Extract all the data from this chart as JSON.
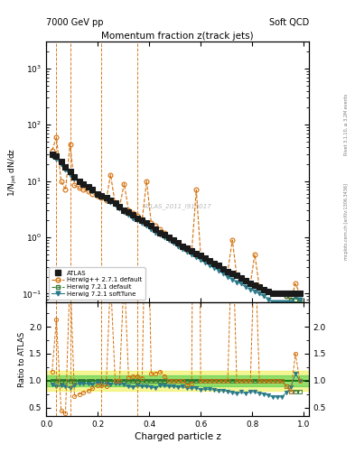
{
  "title": "Momentum fraction z(track jets)",
  "top_left_label": "7000 GeV pp",
  "top_right_label": "Soft QCD",
  "right_label_top": "Rivet 3.1.10, ≥ 3.2M events",
  "right_label_bot": "mcplots.cern.ch [arXiv:1306.3436]",
  "xlabel": "Charged particle z",
  "ylabel_main": "1/N$_{\\rm jet}$ dN/dz",
  "ylabel_ratio": "Ratio to ATLAS",
  "watermark": "ATLAS_2011_I919017",
  "xlim": [
    0.0,
    1.02
  ],
  "ylim_main": [
    0.07,
    3000
  ],
  "ylim_ratio": [
    0.35,
    2.45
  ],
  "atlas_x": [
    0.023,
    0.04,
    0.058,
    0.075,
    0.093,
    0.11,
    0.128,
    0.145,
    0.163,
    0.18,
    0.198,
    0.215,
    0.233,
    0.25,
    0.268,
    0.285,
    0.303,
    0.32,
    0.338,
    0.355,
    0.373,
    0.39,
    0.408,
    0.425,
    0.443,
    0.46,
    0.478,
    0.495,
    0.513,
    0.53,
    0.548,
    0.565,
    0.583,
    0.6,
    0.618,
    0.635,
    0.653,
    0.67,
    0.688,
    0.705,
    0.723,
    0.74,
    0.758,
    0.775,
    0.793,
    0.81,
    0.828,
    0.845,
    0.863,
    0.88,
    0.898,
    0.915,
    0.933,
    0.95,
    0.968,
    0.985
  ],
  "atlas_y": [
    30,
    28,
    22,
    18,
    15,
    12,
    10,
    9,
    8,
    7,
    6,
    5.5,
    5,
    4.5,
    4,
    3.5,
    3,
    2.8,
    2.5,
    2.2,
    2.0,
    1.8,
    1.6,
    1.4,
    1.2,
    1.1,
    1.0,
    0.9,
    0.8,
    0.7,
    0.65,
    0.58,
    0.52,
    0.48,
    0.43,
    0.38,
    0.35,
    0.32,
    0.28,
    0.25,
    0.23,
    0.21,
    0.19,
    0.17,
    0.15,
    0.14,
    0.13,
    0.12,
    0.11,
    0.1,
    0.1,
    0.1,
    0.1,
    0.1,
    0.1,
    0.1
  ],
  "atlas_yerr": [
    2,
    2,
    1.5,
    1.2,
    1.0,
    0.8,
    0.6,
    0.5,
    0.4,
    0.35,
    0.3,
    0.28,
    0.25,
    0.22,
    0.2,
    0.18,
    0.15,
    0.14,
    0.12,
    0.11,
    0.1,
    0.09,
    0.08,
    0.07,
    0.06,
    0.06,
    0.05,
    0.05,
    0.04,
    0.04,
    0.033,
    0.029,
    0.026,
    0.024,
    0.022,
    0.019,
    0.018,
    0.016,
    0.014,
    0.013,
    0.012,
    0.011,
    0.01,
    0.009,
    0.008,
    0.007,
    0.007,
    0.006,
    0.006,
    0.005,
    0.005,
    0.005,
    0.005,
    0.005,
    0.005,
    0.005
  ],
  "hpp_x": [
    0.023,
    0.04,
    0.058,
    0.075,
    0.093,
    0.11,
    0.128,
    0.145,
    0.163,
    0.18,
    0.198,
    0.215,
    0.233,
    0.25,
    0.268,
    0.285,
    0.303,
    0.32,
    0.338,
    0.355,
    0.373,
    0.39,
    0.408,
    0.425,
    0.443,
    0.46,
    0.478,
    0.495,
    0.513,
    0.53,
    0.548,
    0.565,
    0.583,
    0.6,
    0.618,
    0.635,
    0.653,
    0.67,
    0.688,
    0.705,
    0.723,
    0.74,
    0.758,
    0.775,
    0.793,
    0.81,
    0.828,
    0.845,
    0.863,
    0.88,
    0.898,
    0.915,
    0.933,
    0.95,
    0.968,
    0.985
  ],
  "hpp_y": [
    35,
    60,
    10,
    7,
    45,
    8.5,
    7.5,
    7.0,
    6.5,
    6.0,
    5.5,
    5.0,
    4.5,
    13,
    4.0,
    3.5,
    9,
    3.0,
    2.7,
    2.4,
    2.1,
    10,
    1.8,
    1.6,
    1.4,
    1.2,
    1.0,
    0.9,
    0.8,
    0.7,
    0.6,
    0.55,
    7.0,
    0.48,
    0.43,
    0.38,
    0.35,
    0.32,
    0.28,
    0.25,
    0.9,
    0.21,
    0.19,
    0.17,
    0.15,
    0.5,
    0.13,
    0.12,
    0.11,
    0.1,
    0.1,
    0.1,
    0.09,
    0.08,
    0.15,
    0.1
  ],
  "h721_x": [
    0.023,
    0.04,
    0.058,
    0.075,
    0.093,
    0.11,
    0.128,
    0.145,
    0.163,
    0.18,
    0.198,
    0.215,
    0.233,
    0.25,
    0.268,
    0.285,
    0.303,
    0.32,
    0.338,
    0.355,
    0.373,
    0.39,
    0.408,
    0.425,
    0.443,
    0.46,
    0.478,
    0.495,
    0.513,
    0.53,
    0.548,
    0.565,
    0.583,
    0.6,
    0.618,
    0.635,
    0.653,
    0.67,
    0.688,
    0.705,
    0.723,
    0.74,
    0.758,
    0.775,
    0.793,
    0.81,
    0.828,
    0.845,
    0.863,
    0.88,
    0.898,
    0.915,
    0.933,
    0.95,
    0.968,
    0.985
  ],
  "h721_y": [
    30,
    28,
    22,
    18,
    15,
    12,
    10,
    9,
    8,
    7,
    6,
    5.5,
    5,
    4.5,
    4,
    3.5,
    3,
    2.8,
    2.5,
    2.2,
    2.0,
    1.8,
    1.6,
    1.4,
    1.2,
    1.1,
    1.0,
    0.9,
    0.8,
    0.7,
    0.65,
    0.58,
    0.52,
    0.48,
    0.43,
    0.38,
    0.35,
    0.32,
    0.28,
    0.25,
    0.23,
    0.21,
    0.19,
    0.17,
    0.15,
    0.14,
    0.13,
    0.12,
    0.11,
    0.1,
    0.1,
    0.1,
    0.09,
    0.08,
    0.08,
    0.08
  ],
  "h721s_x": [
    0.023,
    0.04,
    0.058,
    0.075,
    0.093,
    0.11,
    0.128,
    0.145,
    0.163,
    0.18,
    0.198,
    0.215,
    0.233,
    0.25,
    0.268,
    0.285,
    0.303,
    0.32,
    0.338,
    0.355,
    0.373,
    0.39,
    0.408,
    0.425,
    0.443,
    0.46,
    0.478,
    0.495,
    0.513,
    0.53,
    0.548,
    0.565,
    0.583,
    0.6,
    0.618,
    0.635,
    0.653,
    0.67,
    0.688,
    0.705,
    0.723,
    0.74,
    0.758,
    0.775,
    0.793,
    0.81,
    0.828,
    0.845,
    0.863,
    0.88,
    0.898,
    0.915,
    0.933,
    0.95,
    0.968,
    0.985
  ],
  "h721s_y": [
    28,
    25,
    20,
    16,
    13,
    11,
    9.5,
    8.5,
    7.5,
    6.5,
    5.8,
    5.2,
    4.7,
    4.2,
    3.8,
    3.3,
    2.8,
    2.5,
    2.2,
    2.0,
    1.8,
    1.6,
    1.4,
    1.2,
    1.1,
    1.0,
    0.9,
    0.8,
    0.7,
    0.62,
    0.56,
    0.5,
    0.45,
    0.4,
    0.36,
    0.32,
    0.29,
    0.26,
    0.23,
    0.2,
    0.18,
    0.16,
    0.15,
    0.13,
    0.12,
    0.11,
    0.1,
    0.09,
    0.08,
    0.07,
    0.07,
    0.07,
    0.07,
    0.07,
    0.09,
    0.08
  ],
  "atlas_c": "#1a1a1a",
  "hpp_c": "#d4700a",
  "h721_c": "#3a7a3a",
  "h721s_c": "#2a7a8a",
  "vlines": [
    0.04,
    0.093,
    0.215,
    0.355
  ],
  "r_hpp": [
    1.17,
    2.14,
    0.45,
    0.39,
    3.0,
    0.71,
    0.75,
    0.78,
    0.81,
    0.86,
    0.92,
    0.91,
    0.9,
    2.89,
    1.0,
    1.0,
    3.0,
    1.07,
    1.08,
    1.09,
    1.05,
    5.56,
    1.13,
    1.14,
    1.17,
    1.09,
    1.0,
    1.0,
    1.0,
    1.0,
    0.92,
    0.95,
    13.5,
    1.0,
    1.0,
    1.0,
    1.0,
    1.0,
    1.0,
    1.0,
    3.91,
    1.0,
    1.0,
    1.0,
    1.0,
    3.57,
    1.0,
    1.0,
    1.0,
    1.0,
    1.0,
    1.0,
    0.9,
    0.8,
    1.5,
    1.0
  ],
  "r_h721": [
    1.0,
    1.0,
    1.0,
    1.0,
    1.0,
    1.0,
    1.0,
    1.0,
    1.0,
    1.0,
    1.0,
    1.0,
    1.0,
    1.0,
    1.0,
    1.0,
    1.0,
    1.0,
    1.0,
    1.0,
    1.0,
    1.0,
    1.0,
    1.0,
    1.0,
    1.0,
    1.0,
    1.0,
    1.0,
    1.0,
    1.0,
    1.0,
    1.0,
    1.0,
    1.0,
    1.0,
    1.0,
    1.0,
    1.0,
    1.0,
    1.0,
    1.0,
    1.0,
    1.0,
    1.0,
    1.0,
    1.0,
    1.0,
    1.0,
    1.0,
    1.0,
    1.0,
    0.9,
    0.8,
    0.8,
    0.8
  ],
  "r_h721s": [
    0.93,
    0.89,
    0.91,
    0.89,
    0.87,
    0.92,
    0.95,
    0.94,
    0.94,
    0.93,
    0.97,
    0.95,
    0.94,
    0.93,
    0.95,
    0.94,
    0.93,
    0.89,
    0.88,
    0.91,
    0.9,
    0.89,
    0.88,
    0.86,
    0.92,
    0.91,
    0.9,
    0.89,
    0.88,
    0.89,
    0.86,
    0.86,
    0.87,
    0.83,
    0.84,
    0.84,
    0.83,
    0.81,
    0.82,
    0.8,
    0.78,
    0.76,
    0.79,
    0.76,
    0.8,
    0.79,
    0.77,
    0.75,
    0.73,
    0.7,
    0.7,
    0.7,
    0.78,
    0.88,
    1.13,
    1.0
  ],
  "yband_lo": 0.82,
  "yband_hi": 1.18,
  "gband_lo": 0.9,
  "gband_hi": 1.1
}
